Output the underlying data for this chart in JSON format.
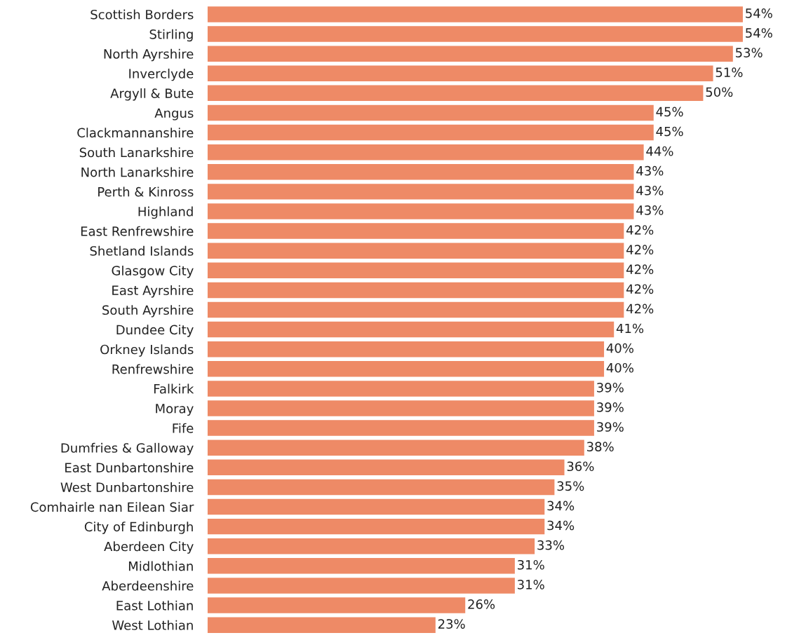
{
  "chart_data": {
    "type": "bar",
    "orientation": "horizontal",
    "color": "#ee8a66",
    "categories": [
      "Scottish Borders",
      "Stirling",
      "North Ayrshire",
      "Inverclyde",
      "Argyll & Bute",
      "Angus",
      "Clackmannanshire",
      "South Lanarkshire",
      "North Lanarkshire",
      "Perth & Kinross",
      "Highland",
      "East Renfrewshire",
      "Shetland Islands",
      "Glasgow City",
      "East Ayrshire",
      "South Ayrshire",
      "Dundee City",
      "Orkney Islands",
      "Renfrewshire",
      "Falkirk",
      "Moray",
      "Fife",
      "Dumfries & Galloway",
      "East Dunbartonshire",
      "West Dunbartonshire",
      "Comhairle nan Eilean Siar",
      "City of Edinburgh",
      "Aberdeen City",
      "Midlothian",
      "Aberdeenshire",
      "East Lothian",
      "West Lothian"
    ],
    "values": [
      54,
      54,
      53,
      51,
      50,
      45,
      45,
      44,
      43,
      43,
      43,
      42,
      42,
      42,
      42,
      42,
      41,
      40,
      40,
      39,
      39,
      39,
      38,
      36,
      35,
      34,
      34,
      33,
      31,
      31,
      26,
      23
    ],
    "value_labels": [
      "54%",
      "54%",
      "53%",
      "51%",
      "50%",
      "45%",
      "45%",
      "44%",
      "43%",
      "43%",
      "43%",
      "42%",
      "42%",
      "42%",
      "42%",
      "42%",
      "41%",
      "40%",
      "40%",
      "39%",
      "39%",
      "39%",
      "38%",
      "36%",
      "35%",
      "34%",
      "34%",
      "33%",
      "31%",
      "31%",
      "26%",
      "23%"
    ],
    "grid": false,
    "legend": false
  }
}
